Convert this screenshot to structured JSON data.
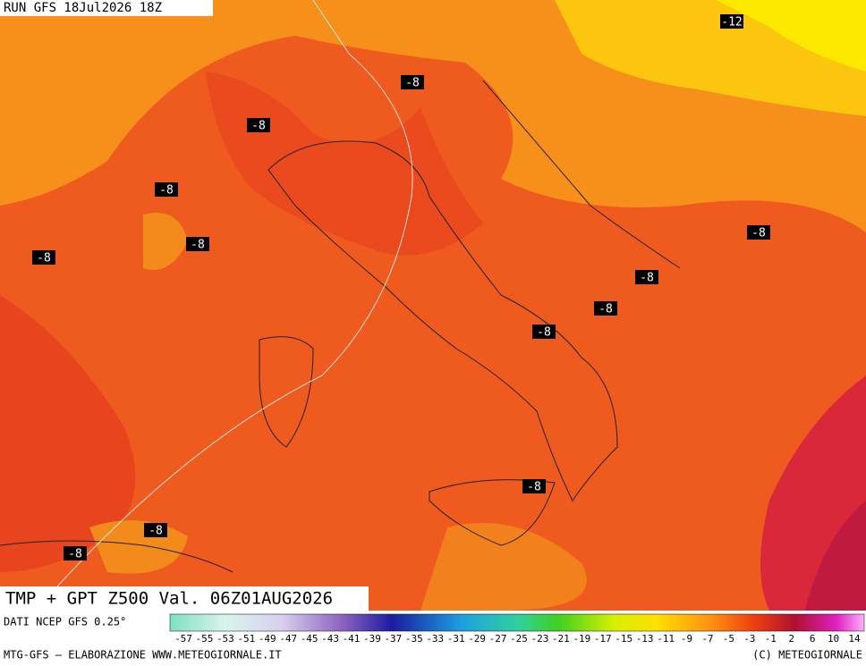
{
  "header": {
    "run": "RUN GFS 18Jul2026 18Z"
  },
  "map": {
    "title": "TMP + GPT Z500 Val. 06Z01AUG2026",
    "contour_labels": [
      "-12",
      "-8",
      "-8",
      "-8",
      "-8",
      "-8",
      "-8",
      "-8",
      "-8",
      "-8",
      "-8",
      "-8",
      "-8"
    ]
  },
  "colorbar": {
    "source": "DATI NCEP GFS 0.25°",
    "labels": [
      "-57",
      "-55",
      "-53",
      "-51",
      "-49",
      "-47",
      "-45",
      "-43",
      "-41",
      "-39",
      "-37",
      "-35",
      "-33",
      "-31",
      "-29",
      "-27",
      "-25",
      "-23",
      "-21",
      "-19",
      "-17",
      "-15",
      "-13",
      "-11",
      "-9",
      "-7",
      "-5",
      "-3",
      "-1",
      "2",
      "6",
      "10",
      "14"
    ]
  },
  "footer": {
    "left": "MTG-GFS — ELABORAZIONE WWW.METEOGIORNALE.IT",
    "right": "(C) METEOGIORNALE"
  }
}
